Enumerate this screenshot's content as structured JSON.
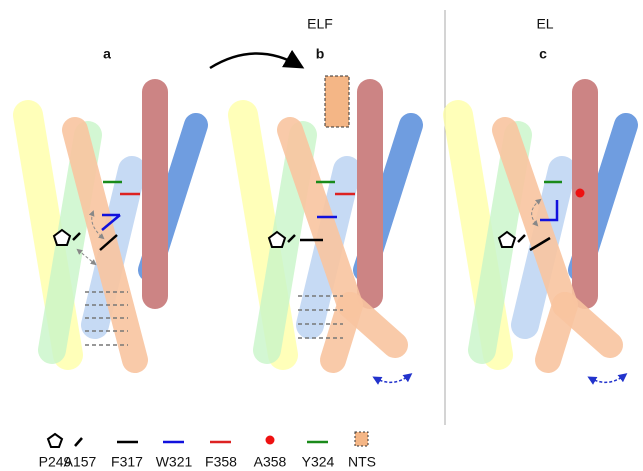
{
  "groups": [
    {
      "title": "ELF"
    },
    {
      "title": "EL"
    }
  ],
  "panels": [
    {
      "label": "a"
    },
    {
      "label": "b"
    },
    {
      "label": "c"
    }
  ],
  "legend": [
    {
      "label": "P249"
    },
    {
      "label": "A157"
    },
    {
      "label": "F317"
    },
    {
      "label": "W321"
    },
    {
      "label": "F358"
    },
    {
      "label": "A358"
    },
    {
      "label": "Y324"
    },
    {
      "label": "NTS"
    }
  ]
}
